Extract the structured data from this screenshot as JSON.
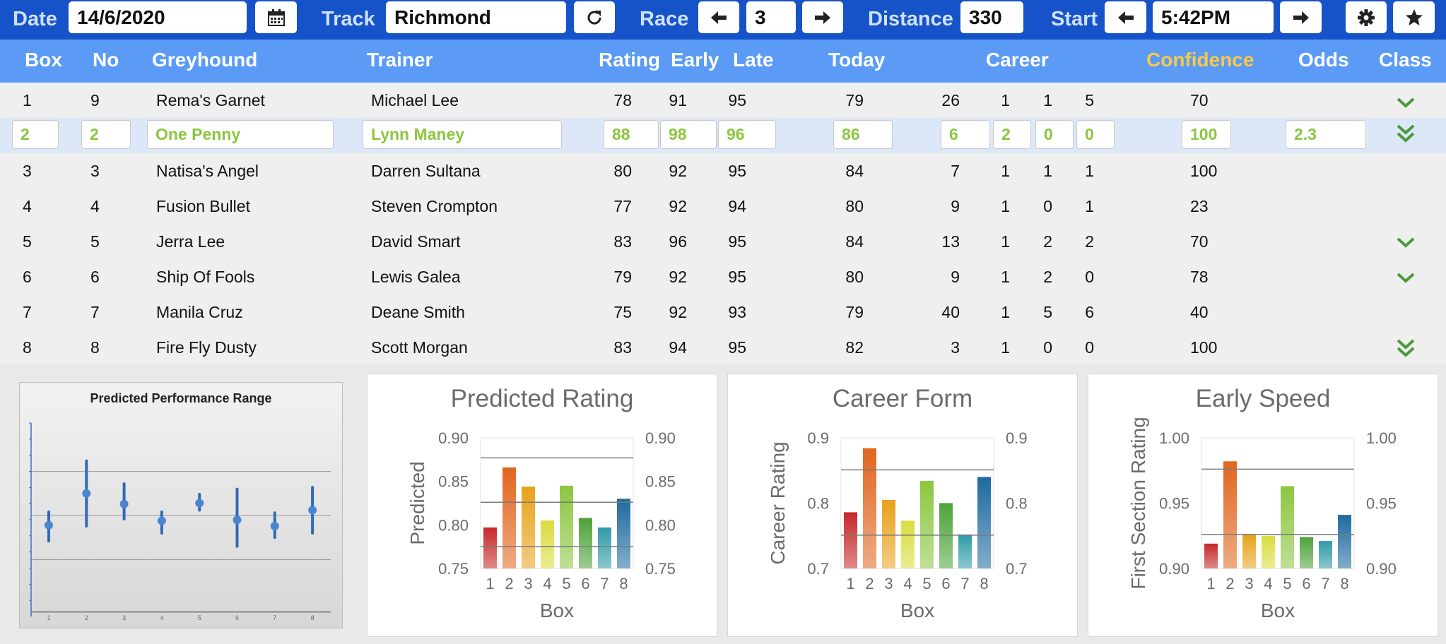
{
  "toolbar": {
    "date_label": "Date",
    "date_value": "14/6/2020",
    "track_label": "Track",
    "track_value": "Richmond",
    "race_label": "Race",
    "race_value": "3",
    "distance_label": "Distance",
    "distance_value": "330",
    "start_label": "Start",
    "start_value": "5:42PM",
    "icons": [
      "calendar-icon",
      "refresh-icon",
      "arrow-left-icon",
      "arrow-right-icon",
      "gear-icon",
      "star-icon"
    ]
  },
  "table": {
    "headers": {
      "box": "Box",
      "no": "No",
      "greyhound": "Greyhound",
      "trainer": "Trainer",
      "rating": "Rating",
      "early": "Early",
      "late": "Late",
      "today": "Today",
      "career": "Career",
      "confidence": "Confidence",
      "odds": "Odds",
      "class": "Class"
    },
    "rows": [
      {
        "box": "1",
        "no": "9",
        "greyhound": "Rema's Garnet",
        "trainer": "Michael Lee",
        "rating": "78",
        "early": "91",
        "late": "95",
        "today": "79",
        "c1": "26",
        "c2": "1",
        "c3": "1",
        "c4": "5",
        "confidence": "70",
        "odds": "",
        "class": "single"
      },
      {
        "box": "2",
        "no": "2",
        "greyhound": "One Penny",
        "trainer": "Lynn Maney",
        "rating": "88",
        "early": "98",
        "late": "96",
        "today": "86",
        "c1": "6",
        "c2": "2",
        "c3": "0",
        "c4": "0",
        "confidence": "100",
        "odds": "2.3",
        "class": "double"
      },
      {
        "box": "3",
        "no": "3",
        "greyhound": "Natisa's Angel",
        "trainer": "Darren Sultana",
        "rating": "80",
        "early": "92",
        "late": "95",
        "today": "84",
        "c1": "7",
        "c2": "1",
        "c3": "1",
        "c4": "1",
        "confidence": "100",
        "odds": "",
        "class": "none"
      },
      {
        "box": "4",
        "no": "4",
        "greyhound": "Fusion Bullet",
        "trainer": "Steven Crompton",
        "rating": "77",
        "early": "92",
        "late": "94",
        "today": "80",
        "c1": "9",
        "c2": "1",
        "c3": "0",
        "c4": "1",
        "confidence": "23",
        "odds": "",
        "class": "none"
      },
      {
        "box": "5",
        "no": "5",
        "greyhound": "Jerra Lee",
        "trainer": "David Smart",
        "rating": "83",
        "early": "96",
        "late": "95",
        "today": "84",
        "c1": "13",
        "c2": "1",
        "c3": "2",
        "c4": "2",
        "confidence": "70",
        "odds": "",
        "class": "single"
      },
      {
        "box": "6",
        "no": "6",
        "greyhound": "Ship Of Fools",
        "trainer": "Lewis Galea",
        "rating": "79",
        "early": "92",
        "late": "95",
        "today": "80",
        "c1": "9",
        "c2": "1",
        "c3": "2",
        "c4": "0",
        "confidence": "78",
        "odds": "",
        "class": "single"
      },
      {
        "box": "7",
        "no": "7",
        "greyhound": "Manila Cruz",
        "trainer": "Deane Smith",
        "rating": "75",
        "early": "92",
        "late": "93",
        "today": "79",
        "c1": "40",
        "c2": "1",
        "c3": "5",
        "c4": "6",
        "confidence": "40",
        "odds": "",
        "class": "none"
      },
      {
        "box": "8",
        "no": "8",
        "greyhound": "Fire Fly Dusty",
        "trainer": "Scott Morgan",
        "rating": "83",
        "early": "94",
        "late": "95",
        "today": "82",
        "c1": "3",
        "c2": "1",
        "c3": "0",
        "c4": "0",
        "confidence": "100",
        "odds": "",
        "class": "double"
      }
    ],
    "selected_row": 1
  },
  "colors": {
    "toolbar": "#1753c8",
    "header": "#5b9bf5",
    "confidence_header": "#f7c948",
    "selected_text": "#8cc63f",
    "class_check": "#4a9a3a",
    "bars": [
      "#c62828",
      "#e0661f",
      "#e8a21c",
      "#d9dd3d",
      "#8cc63f",
      "#4ea23a",
      "#2f9aa8",
      "#1e6aa0"
    ]
  },
  "chart_data": [
    {
      "type": "scatter",
      "title": "Predicted Performance Range",
      "x": [
        1,
        2,
        3,
        4,
        5,
        6,
        7,
        8
      ],
      "x_tick_labels": [
        "1",
        "2",
        "3",
        "4",
        "5",
        "6",
        "7",
        "8"
      ],
      "mid": [
        0.39,
        0.75,
        0.63,
        0.44,
        0.64,
        0.45,
        0.38,
        0.56
      ],
      "low": [
        0.21,
        0.38,
        0.46,
        0.3,
        0.56,
        0.15,
        0.25,
        0.3
      ],
      "high": [
        0.54,
        1.12,
        0.86,
        0.54,
        0.74,
        0.8,
        0.53,
        0.82
      ],
      "ylim": [
        -0.55,
        1.55
      ],
      "grid": true
    },
    {
      "type": "bar",
      "title": "Predicted Rating",
      "xlabel": "Box",
      "ylabel": "Predicted",
      "categories": [
        "1",
        "2",
        "3",
        "4",
        "5",
        "6",
        "7",
        "8"
      ],
      "values": [
        0.797,
        0.866,
        0.844,
        0.805,
        0.845,
        0.808,
        0.797,
        0.83
      ],
      "ylim": [
        0.75,
        0.9
      ],
      "yticks": [
        "0.90",
        "0.85",
        "0.80",
        "0.75"
      ],
      "ref_lines": [
        0.877,
        0.826,
        0.775
      ]
    },
    {
      "type": "bar",
      "title": "Career Form",
      "xlabel": "Box",
      "ylabel": "Career Rating",
      "categories": [
        "1",
        "2",
        "3",
        "4",
        "5",
        "6",
        "7",
        "8"
      ],
      "values": [
        0.786,
        0.884,
        0.805,
        0.773,
        0.834,
        0.8,
        0.752,
        0.84
      ],
      "ylim": [
        0.7,
        0.9
      ],
      "yticks": [
        "0.9",
        "0.8",
        "0.7"
      ],
      "ref_lines": [
        0.851,
        0.751
      ]
    },
    {
      "type": "bar",
      "title": "Early Speed",
      "xlabel": "Box",
      "ylabel": "First Section Rating",
      "categories": [
        "1",
        "2",
        "3",
        "4",
        "5",
        "6",
        "7",
        "8"
      ],
      "values": [
        0.919,
        0.982,
        0.926,
        0.925,
        0.963,
        0.924,
        0.921,
        0.941
      ],
      "ylim": [
        0.9,
        1.0
      ],
      "yticks": [
        "1.00",
        "0.95",
        "0.90"
      ],
      "ref_lines": [
        0.976,
        0.926
      ]
    }
  ]
}
